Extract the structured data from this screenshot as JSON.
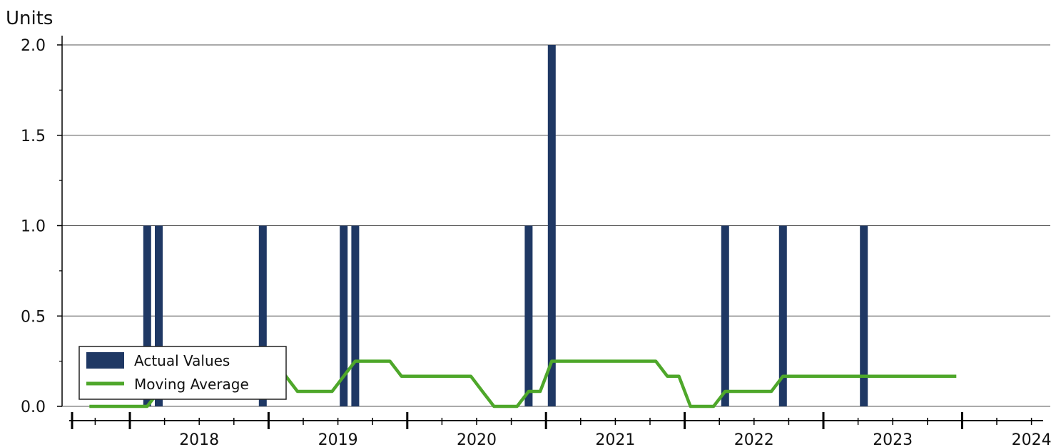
{
  "chart_data": {
    "type": "bar",
    "ylabel": "Units",
    "ylim": [
      0,
      2
    ],
    "y_ticks": [
      "0.0",
      "0.5",
      "1.0",
      "1.5",
      "2.0"
    ],
    "y_tick_values": [
      0,
      0.5,
      1,
      1.5,
      2
    ],
    "x_tick_labels": [
      "2018",
      "2019",
      "2020",
      "2021",
      "2022",
      "2023",
      "2024"
    ],
    "x_range": [
      "2017-08",
      "2024-08"
    ],
    "grid": true,
    "legend_position": "bottom-left",
    "series": [
      {
        "name": "Actual Values",
        "type": "bar",
        "color": "#1f3864",
        "points": [
          {
            "x": "2018-02",
            "y": 1
          },
          {
            "x": "2018-03",
            "y": 1
          },
          {
            "x": "2018-12",
            "y": 1
          },
          {
            "x": "2019-07",
            "y": 1
          },
          {
            "x": "2019-08",
            "y": 1
          },
          {
            "x": "2020-11",
            "y": 1
          },
          {
            "x": "2021-01",
            "y": 2
          },
          {
            "x": "2022-04",
            "y": 1
          },
          {
            "x": "2022-09",
            "y": 1
          },
          {
            "x": "2023-04",
            "y": 1
          }
        ]
      },
      {
        "name": "Moving Average",
        "type": "line",
        "color": "#4ea72a",
        "x": [
          "2017-09",
          "2017-10",
          "2017-11",
          "2017-12",
          "2018-01",
          "2018-02",
          "2018-03",
          "2018-04",
          "2018-05",
          "2018-06",
          "2018-07",
          "2018-08",
          "2018-09",
          "2018-10",
          "2018-11",
          "2018-12",
          "2019-01",
          "2019-02",
          "2019-03",
          "2019-04",
          "2019-05",
          "2019-06",
          "2019-07",
          "2019-08",
          "2019-09",
          "2019-10",
          "2019-11",
          "2019-12",
          "2020-01",
          "2020-02",
          "2020-03",
          "2020-04",
          "2020-05",
          "2020-06",
          "2020-07",
          "2020-08",
          "2020-09",
          "2020-10",
          "2020-11",
          "2020-12",
          "2021-01",
          "2021-02",
          "2021-03",
          "2021-04",
          "2021-05",
          "2021-06",
          "2021-07",
          "2021-08",
          "2021-09",
          "2021-10",
          "2021-11",
          "2021-12",
          "2022-01",
          "2022-02",
          "2022-03",
          "2022-04",
          "2022-05",
          "2022-06",
          "2022-07",
          "2022-08",
          "2022-09",
          "2022-10",
          "2022-11",
          "2022-12",
          "2023-01",
          "2023-02",
          "2023-03",
          "2023-04",
          "2023-05",
          "2023-06",
          "2023-07",
          "2023-08",
          "2023-09",
          "2023-10",
          "2023-11",
          "2023-12"
        ],
        "values": [
          0,
          0,
          0,
          0,
          0,
          0,
          0.083,
          0.167,
          0.167,
          0.167,
          0.167,
          0.167,
          0.167,
          0.167,
          0.25,
          0.25,
          0.25,
          0.167,
          0.083,
          0.083,
          0.083,
          0.083,
          0.167,
          0.25,
          0.25,
          0.25,
          0.25,
          0.167,
          0.167,
          0.167,
          0.167,
          0.167,
          0.167,
          0.167,
          0.083,
          0,
          0,
          0,
          0.083,
          0.083,
          0.25,
          0.25,
          0.25,
          0.25,
          0.25,
          0.25,
          0.25,
          0.25,
          0.25,
          0.25,
          0.167,
          0.167,
          0,
          0,
          0,
          0.083,
          0.083,
          0.083,
          0.083,
          0.083,
          0.167,
          0.167,
          0.167,
          0.167,
          0.167,
          0.167,
          0.167,
          0.167,
          0.167,
          0.167,
          0.167,
          0.167,
          0.167,
          0.167,
          0.167,
          0.167
        ]
      }
    ]
  }
}
